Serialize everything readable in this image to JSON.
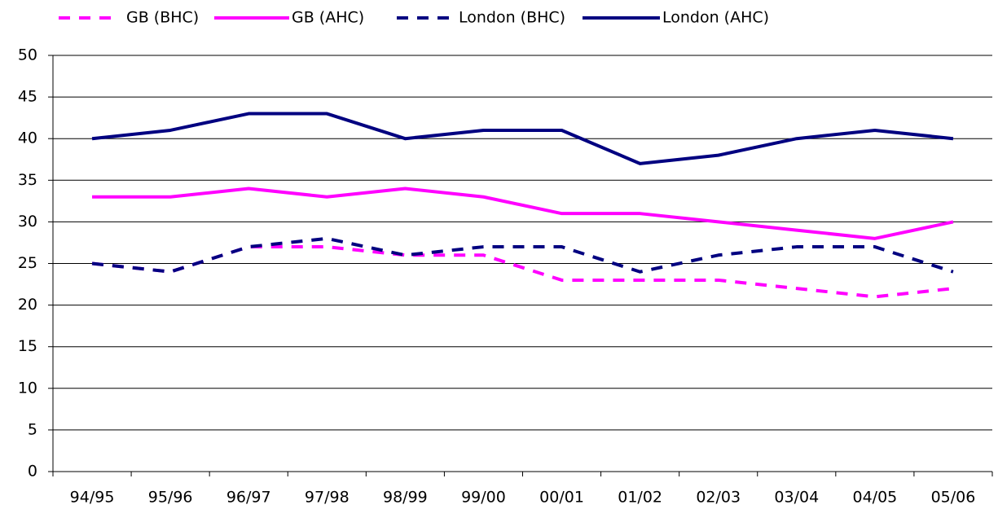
{
  "chart_data": {
    "type": "line",
    "categories": [
      "94/95",
      "95/96",
      "96/97",
      "97/98",
      "98/99",
      "99/00",
      "00/01",
      "01/02",
      "02/03",
      "03/04",
      "04/05",
      "05/06"
    ],
    "series": [
      {
        "name": "GB (BHC)",
        "color": "#ff00ff",
        "dashed": true,
        "values": [
          25,
          24,
          27,
          27,
          26,
          26,
          23,
          23,
          23,
          22,
          21,
          22
        ]
      },
      {
        "name": "GB (AHC)",
        "color": "#ff00ff",
        "dashed": false,
        "values": [
          33,
          33,
          34,
          33,
          34,
          33,
          31,
          31,
          30,
          29,
          28,
          30
        ]
      },
      {
        "name": "London (BHC)",
        "color": "#000080",
        "dashed": true,
        "values": [
          25,
          24,
          27,
          28,
          26,
          27,
          27,
          24,
          26,
          27,
          27,
          24
        ]
      },
      {
        "name": "London (AHC)",
        "color": "#000080",
        "dashed": false,
        "values": [
          40,
          41,
          43,
          43,
          40,
          41,
          41,
          37,
          38,
          40,
          41,
          40
        ]
      }
    ],
    "ylim": [
      0,
      50
    ],
    "yticks": [
      0,
      5,
      10,
      15,
      20,
      25,
      30,
      35,
      40,
      45,
      50
    ],
    "grid": true,
    "legend": "top"
  }
}
